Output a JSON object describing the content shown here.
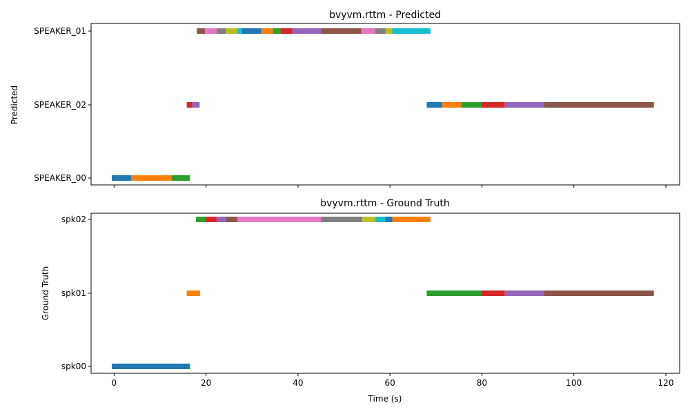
{
  "palette": [
    "#1f77b4",
    "#ff7f0e",
    "#2ca02c",
    "#d62728",
    "#9467bd",
    "#8c564b",
    "#e377c2",
    "#7f7f7f",
    "#bcbd22",
    "#17becf"
  ],
  "chart_data": [
    {
      "type": "broken_barh",
      "title": "bvyvm.rttm - Predicted",
      "ylabel": "Predicted",
      "xlabel": "",
      "xlim": [
        -5,
        123
      ],
      "x_ticks": [
        0,
        20,
        40,
        60,
        80,
        100,
        120
      ],
      "show_x_tick_labels": false,
      "speakers": [
        "SPEAKER_00",
        "SPEAKER_02",
        "SPEAKER_01"
      ],
      "segments": [
        {
          "speaker": "SPEAKER_00",
          "start": -0.5,
          "end": 3.7,
          "color": 0
        },
        {
          "speaker": "SPEAKER_00",
          "start": 3.7,
          "end": 12.5,
          "color": 1
        },
        {
          "speaker": "SPEAKER_00",
          "start": 12.5,
          "end": 16.5,
          "color": 2
        },
        {
          "speaker": "SPEAKER_02",
          "start": 15.8,
          "end": 17.0,
          "color": 3
        },
        {
          "speaker": "SPEAKER_02",
          "start": 17.0,
          "end": 18.6,
          "color": 4
        },
        {
          "speaker": "SPEAKER_01",
          "start": 18.0,
          "end": 19.8,
          "color": 5
        },
        {
          "speaker": "SPEAKER_01",
          "start": 19.8,
          "end": 22.3,
          "color": 6
        },
        {
          "speaker": "SPEAKER_01",
          "start": 22.3,
          "end": 24.3,
          "color": 7
        },
        {
          "speaker": "SPEAKER_01",
          "start": 24.3,
          "end": 26.8,
          "color": 8
        },
        {
          "speaker": "SPEAKER_01",
          "start": 26.8,
          "end": 27.8,
          "color": 9
        },
        {
          "speaker": "SPEAKER_01",
          "start": 27.8,
          "end": 32.0,
          "color": 0
        },
        {
          "speaker": "SPEAKER_01",
          "start": 32.0,
          "end": 34.5,
          "color": 1
        },
        {
          "speaker": "SPEAKER_01",
          "start": 34.5,
          "end": 36.2,
          "color": 2
        },
        {
          "speaker": "SPEAKER_01",
          "start": 36.2,
          "end": 38.8,
          "color": 3
        },
        {
          "speaker": "SPEAKER_01",
          "start": 38.8,
          "end": 45.0,
          "color": 4
        },
        {
          "speaker": "SPEAKER_01",
          "start": 45.0,
          "end": 53.8,
          "color": 5
        },
        {
          "speaker": "SPEAKER_01",
          "start": 53.8,
          "end": 56.8,
          "color": 6
        },
        {
          "speaker": "SPEAKER_01",
          "start": 56.8,
          "end": 59.0,
          "color": 7
        },
        {
          "speaker": "SPEAKER_01",
          "start": 59.0,
          "end": 60.5,
          "color": 8
        },
        {
          "speaker": "SPEAKER_01",
          "start": 60.5,
          "end": 68.8,
          "color": 9
        },
        {
          "speaker": "SPEAKER_02",
          "start": 68.0,
          "end": 71.3,
          "color": 0
        },
        {
          "speaker": "SPEAKER_02",
          "start": 71.3,
          "end": 75.5,
          "color": 1
        },
        {
          "speaker": "SPEAKER_02",
          "start": 75.5,
          "end": 79.8,
          "color": 2
        },
        {
          "speaker": "SPEAKER_02",
          "start": 79.8,
          "end": 85.0,
          "color": 3
        },
        {
          "speaker": "SPEAKER_02",
          "start": 85.0,
          "end": 93.5,
          "color": 4
        },
        {
          "speaker": "SPEAKER_02",
          "start": 93.5,
          "end": 117.4,
          "color": 5
        }
      ]
    },
    {
      "type": "broken_barh",
      "title": "bvyvm.rttm - Ground Truth",
      "ylabel": "Ground Truth",
      "xlabel": "Time (s)",
      "xlim": [
        -5,
        123
      ],
      "x_ticks": [
        0,
        20,
        40,
        60,
        80,
        100,
        120
      ],
      "show_x_tick_labels": true,
      "speakers": [
        "spk00",
        "spk01",
        "spk02"
      ],
      "segments": [
        {
          "speaker": "spk00",
          "start": -0.5,
          "end": 16.5,
          "color": 0
        },
        {
          "speaker": "spk01",
          "start": 15.8,
          "end": 18.7,
          "color": 1
        },
        {
          "speaker": "spk02",
          "start": 17.8,
          "end": 19.8,
          "color": 2
        },
        {
          "speaker": "spk02",
          "start": 19.8,
          "end": 22.3,
          "color": 3
        },
        {
          "speaker": "spk02",
          "start": 22.3,
          "end": 24.3,
          "color": 4
        },
        {
          "speaker": "spk02",
          "start": 24.3,
          "end": 26.8,
          "color": 5
        },
        {
          "speaker": "spk02",
          "start": 26.8,
          "end": 45.0,
          "color": 6
        },
        {
          "speaker": "spk02",
          "start": 45.0,
          "end": 54.0,
          "color": 7
        },
        {
          "speaker": "spk02",
          "start": 54.0,
          "end": 56.8,
          "color": 8
        },
        {
          "speaker": "spk02",
          "start": 56.8,
          "end": 59.0,
          "color": 9
        },
        {
          "speaker": "spk02",
          "start": 59.0,
          "end": 60.5,
          "color": 0
        },
        {
          "speaker": "spk02",
          "start": 60.5,
          "end": 68.8,
          "color": 1
        },
        {
          "speaker": "spk01",
          "start": 68.0,
          "end": 79.8,
          "color": 2
        },
        {
          "speaker": "spk01",
          "start": 79.8,
          "end": 85.0,
          "color": 3
        },
        {
          "speaker": "spk01",
          "start": 85.0,
          "end": 93.5,
          "color": 4
        },
        {
          "speaker": "spk01",
          "start": 93.5,
          "end": 117.4,
          "color": 5
        }
      ]
    }
  ]
}
